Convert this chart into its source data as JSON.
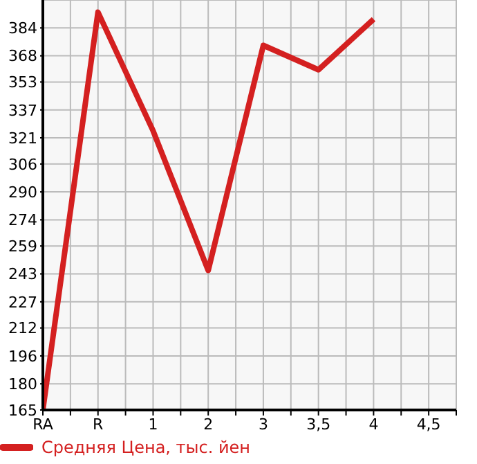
{
  "chart_data": {
    "type": "line",
    "categories": [
      "RA",
      "R",
      "1",
      "2",
      "3",
      "3,5",
      "4",
      "4,5"
    ],
    "series": [
      {
        "name": "Средняя Цена, тыс. йен",
        "color": "#d42020",
        "values": [
          165,
          393,
          325,
          245,
          374,
          360,
          389,
          null
        ]
      }
    ],
    "ylim": [
      165,
      400
    ],
    "yticks": [
      165,
      180,
      196,
      212,
      227,
      243,
      259,
      274,
      290,
      306,
      321,
      337,
      353,
      368,
      384
    ],
    "grid": true,
    "legend": "bottom left",
    "marker": "none",
    "line_style": "solid"
  }
}
